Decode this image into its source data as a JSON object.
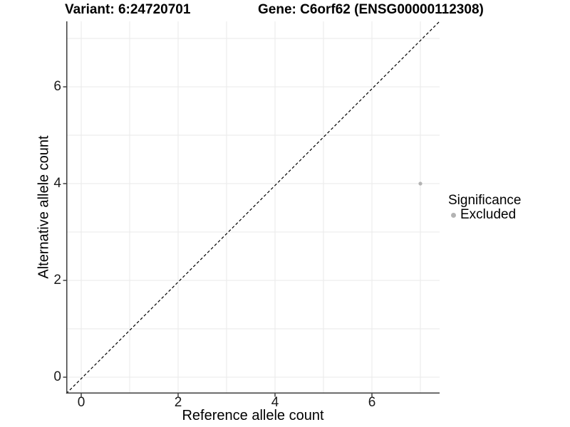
{
  "chart_data": {
    "type": "scatter",
    "titles": {
      "variant": "Variant: 6:24720701",
      "gene": "Gene: C6orf62 (ENSG00000112308)"
    },
    "xlabel": "Reference allele count",
    "ylabel": "Alternative allele count",
    "xlim": [
      -0.35,
      7.35
    ],
    "ylim": [
      -0.35,
      7.35
    ],
    "x_ticks": [
      0,
      2,
      4,
      6
    ],
    "y_ticks": [
      0,
      2,
      4,
      6
    ],
    "gridlines": {
      "positions": [
        0,
        1,
        2,
        3,
        4,
        5,
        6,
        7
      ],
      "color": "#eaeaea"
    },
    "reference_line": {
      "kind": "identity",
      "equation": "y = x",
      "style": "dashed",
      "color": "#000000"
    },
    "series": [
      {
        "name": "Excluded",
        "marker": "circle",
        "color": "#b3b3b3",
        "points": [
          {
            "x": 7,
            "y": 4
          }
        ]
      }
    ],
    "legend": {
      "title": "Significance",
      "position": "right",
      "entries": [
        {
          "label": "Excluded",
          "color": "#b3b3b3",
          "marker": "circle"
        }
      ]
    },
    "style": {
      "background": "#ffffff",
      "axis_line_color": "#3d3d3d",
      "grid_color": "#eaeaea",
      "text_color": "#000000",
      "tick_label_color": "#1a1a1a",
      "point_color": "#b3b3b3"
    }
  }
}
